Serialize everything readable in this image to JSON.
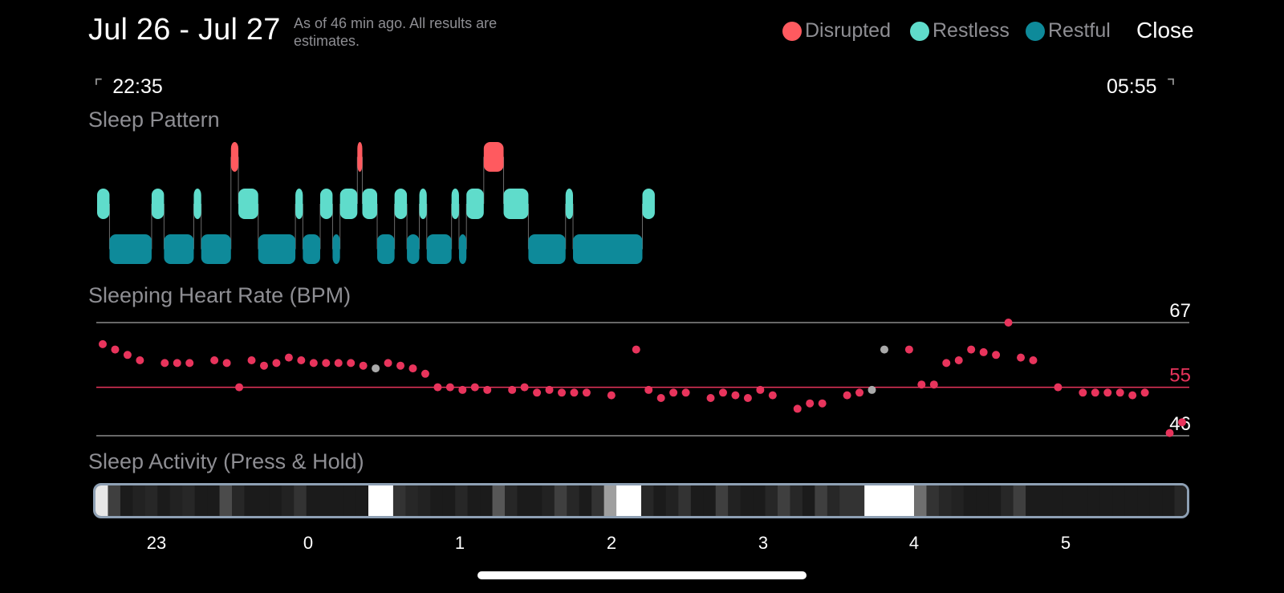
{
  "header": {
    "date_range": "Jul 26 - Jul 27",
    "as_of": "As of 46 min ago. All results are estimates.",
    "close_label": "Close"
  },
  "legend": {
    "disrupted": {
      "label": "Disrupted",
      "color": "#ff5a5f"
    },
    "restless": {
      "label": "Restless",
      "color": "#5fdccb"
    },
    "restful": {
      "label": "Restful",
      "color": "#0e8a9a"
    }
  },
  "time_range": {
    "start": "22:35",
    "end": "05:55"
  },
  "sections": {
    "pattern_title": "Sleep Pattern",
    "hr_title": "Sleeping Heart Rate (BPM)",
    "activity_title": "Sleep Activity (Press & Hold)"
  },
  "sleep_pattern": {
    "segments": [
      {
        "stage": "restless",
        "start": "22:35",
        "end": "22:40"
      },
      {
        "stage": "restful",
        "start": "22:40",
        "end": "22:57"
      },
      {
        "stage": "restless",
        "start": "22:57",
        "end": "23:02"
      },
      {
        "stage": "restful",
        "start": "23:02",
        "end": "23:14"
      },
      {
        "stage": "restless",
        "start": "23:14",
        "end": "23:17"
      },
      {
        "stage": "restful",
        "start": "23:17",
        "end": "23:29"
      },
      {
        "stage": "disrupted",
        "start": "23:29",
        "end": "23:32"
      },
      {
        "stage": "restless",
        "start": "23:32",
        "end": "23:40"
      },
      {
        "stage": "restful",
        "start": "23:40",
        "end": "23:55"
      },
      {
        "stage": "restless",
        "start": "23:55",
        "end": "23:58"
      },
      {
        "stage": "restful",
        "start": "23:58",
        "end": "00:05"
      },
      {
        "stage": "restless",
        "start": "00:05",
        "end": "00:10"
      },
      {
        "stage": "restful",
        "start": "00:10",
        "end": "00:13"
      },
      {
        "stage": "restless",
        "start": "00:13",
        "end": "00:20"
      },
      {
        "stage": "disrupted",
        "start": "00:20",
        "end": "00:22"
      },
      {
        "stage": "restless",
        "start": "00:22",
        "end": "00:28"
      },
      {
        "stage": "restful",
        "start": "00:28",
        "end": "00:35"
      },
      {
        "stage": "restless",
        "start": "00:35",
        "end": "00:40"
      },
      {
        "stage": "restful",
        "start": "00:40",
        "end": "00:45"
      },
      {
        "stage": "restless",
        "start": "00:45",
        "end": "00:48"
      },
      {
        "stage": "restful",
        "start": "00:48",
        "end": "00:58"
      },
      {
        "stage": "restless",
        "start": "00:58",
        "end": "01:01"
      },
      {
        "stage": "restful",
        "start": "01:01",
        "end": "01:04"
      },
      {
        "stage": "restless",
        "start": "01:04",
        "end": "01:11"
      },
      {
        "stage": "disrupted",
        "start": "01:11",
        "end": "01:19"
      },
      {
        "stage": "restless",
        "start": "01:19",
        "end": "01:29"
      },
      {
        "stage": "restful",
        "start": "01:29",
        "end": "01:44"
      },
      {
        "stage": "restless",
        "start": "01:44",
        "end": "01:47"
      },
      {
        "stage": "restful",
        "start": "01:47",
        "end": "02:15"
      },
      {
        "stage": "restless",
        "start": "02:15",
        "end": "02:20"
      }
    ]
  },
  "heart_rate": {
    "max_label": "67",
    "avg_label": "55",
    "min_label": "46",
    "max": 67,
    "avg": 55,
    "min": 46,
    "colors": {
      "point": "#e8345c",
      "gap": "#aaaaaa",
      "avg_line": "#e8345c",
      "ref_line": "#8a8a8a"
    },
    "points": [
      {
        "t": 0,
        "v": 63
      },
      {
        "t": 1,
        "v": 62
      },
      {
        "t": 2,
        "v": 61
      },
      {
        "t": 3,
        "v": 60
      },
      {
        "t": 5,
        "v": 59.5
      },
      {
        "t": 6,
        "v": 59.5
      },
      {
        "t": 7,
        "v": 59.5
      },
      {
        "t": 9,
        "v": 60
      },
      {
        "t": 10,
        "v": 59.5
      },
      {
        "t": 11,
        "v": 55
      },
      {
        "t": 12,
        "v": 60
      },
      {
        "t": 13,
        "v": 59
      },
      {
        "t": 14,
        "v": 59.5
      },
      {
        "t": 15,
        "v": 60.5
      },
      {
        "t": 16,
        "v": 60
      },
      {
        "t": 17,
        "v": 59.5
      },
      {
        "t": 18,
        "v": 59.5
      },
      {
        "t": 19,
        "v": 59.5
      },
      {
        "t": 20,
        "v": 59.5
      },
      {
        "t": 21,
        "v": 59
      },
      {
        "t": 22,
        "v": 58.5,
        "gap": true
      },
      {
        "t": 23,
        "v": 59.5
      },
      {
        "t": 24,
        "v": 59
      },
      {
        "t": 25,
        "v": 58.5
      },
      {
        "t": 26,
        "v": 57.5
      },
      {
        "t": 27,
        "v": 55
      },
      {
        "t": 28,
        "v": 55
      },
      {
        "t": 29,
        "v": 54.5
      },
      {
        "t": 30,
        "v": 55
      },
      {
        "t": 31,
        "v": 54.5
      },
      {
        "t": 33,
        "v": 54.5
      },
      {
        "t": 34,
        "v": 55
      },
      {
        "t": 35,
        "v": 54
      },
      {
        "t": 36,
        "v": 54.5
      },
      {
        "t": 37,
        "v": 54
      },
      {
        "t": 38,
        "v": 54
      },
      {
        "t": 39,
        "v": 54
      },
      {
        "t": 41,
        "v": 53.5
      },
      {
        "t": 43,
        "v": 62
      },
      {
        "t": 44,
        "v": 54.5
      },
      {
        "t": 45,
        "v": 53
      },
      {
        "t": 46,
        "v": 54
      },
      {
        "t": 47,
        "v": 54
      },
      {
        "t": 49,
        "v": 53
      },
      {
        "t": 50,
        "v": 54
      },
      {
        "t": 51,
        "v": 53.5
      },
      {
        "t": 52,
        "v": 53
      },
      {
        "t": 53,
        "v": 54.5
      },
      {
        "t": 54,
        "v": 53.5
      },
      {
        "t": 56,
        "v": 51
      },
      {
        "t": 57,
        "v": 52
      },
      {
        "t": 58,
        "v": 52
      },
      {
        "t": 60,
        "v": 53.5
      },
      {
        "t": 61,
        "v": 54
      },
      {
        "t": 62,
        "v": 54.5,
        "gap": true
      },
      {
        "t": 63,
        "v": 62,
        "gap": true
      },
      {
        "t": 65,
        "v": 62
      },
      {
        "t": 66,
        "v": 55.5
      },
      {
        "t": 67,
        "v": 55.5
      },
      {
        "t": 68,
        "v": 59.5
      },
      {
        "t": 69,
        "v": 60
      },
      {
        "t": 70,
        "v": 62
      },
      {
        "t": 71,
        "v": 61.5
      },
      {
        "t": 72,
        "v": 61
      },
      {
        "t": 73,
        "v": 67
      },
      {
        "t": 74,
        "v": 60.5
      },
      {
        "t": 75,
        "v": 60
      },
      {
        "t": 77,
        "v": 55
      },
      {
        "t": 79,
        "v": 54
      },
      {
        "t": 80,
        "v": 54
      },
      {
        "t": 81,
        "v": 54
      },
      {
        "t": 82,
        "v": 54
      },
      {
        "t": 83,
        "v": 53.5
      },
      {
        "t": 84,
        "v": 54
      },
      {
        "t": 86,
        "v": 46.5
      },
      {
        "t": 87,
        "v": 48.5
      }
    ]
  },
  "activity": {
    "axis_ticks": [
      "23",
      "0",
      "1",
      "2",
      "3",
      "4",
      "5"
    ],
    "levels": [
      0.9,
      0.2,
      0.05,
      0.08,
      0.1,
      0.05,
      0.08,
      0.1,
      0.05,
      0.05,
      0.25,
      0.1,
      0.05,
      0.05,
      0.05,
      0.08,
      0.15,
      0.05,
      0.05,
      0.05,
      0.05,
      0.05,
      1.0,
      1.0,
      0.15,
      0.1,
      0.08,
      0.05,
      0.05,
      0.1,
      0.05,
      0.05,
      0.3,
      0.1,
      0.05,
      0.05,
      0.08,
      0.2,
      0.1,
      0.05,
      0.15,
      0.6,
      1.0,
      1.0,
      0.1,
      0.05,
      0.08,
      0.15,
      0.05,
      0.05,
      0.2,
      0.08,
      0.05,
      0.05,
      0.1,
      0.2,
      0.1,
      0.05,
      0.2,
      0.1,
      0.15,
      0.15,
      1.0,
      1.0,
      1.0,
      1.0,
      0.4,
      0.15,
      0.1,
      0.08,
      0.05,
      0.05,
      0.05,
      0.1,
      0.2,
      0.05,
      0.05,
      0.05,
      0.05,
      0.05,
      0.05,
      0.05,
      0.05,
      0.05,
      0.05,
      0.05,
      0.05,
      0.1
    ]
  }
}
